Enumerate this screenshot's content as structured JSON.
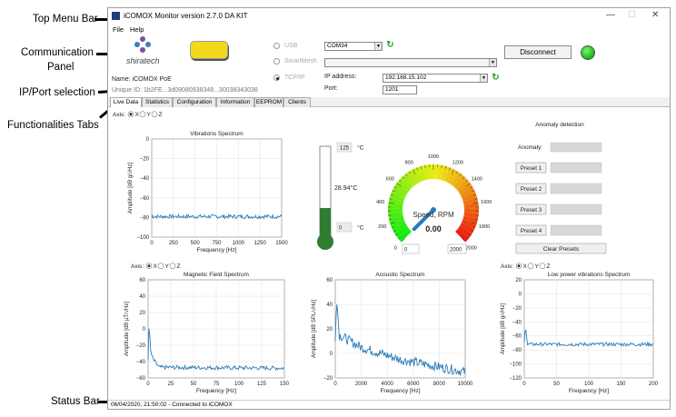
{
  "annotations": {
    "top_menu_bar": "Top Menu Bar",
    "communication_panel_1": "Communication",
    "communication_panel_2": "Panel",
    "ip_port_selection": "IP/Port selection",
    "functionalities_tabs": "Functionalities Tabs",
    "status_bar": "Status Bar"
  },
  "window": {
    "title": "iCOMOX Monitor version 2.7.0 DA KIT",
    "minimize": "—",
    "maximize": "☐",
    "close": "✕"
  },
  "menu": {
    "file": "File",
    "help": "Help"
  },
  "comm": {
    "logo_text": "shiratech",
    "name_label": "Name: iCOMOX PoE",
    "unique_id_label": "Unique ID: 1b2FE...3d09080938348...30038343038",
    "usb_label": "USB",
    "smartmesh_label": "SmartMesh",
    "tcpip_label": "TCP/IP",
    "com_value": "COM34",
    "ip_label": "IP address:",
    "ip_value": "192.168.15.102",
    "port_label": "Port:",
    "port_value": "1201",
    "disconnect_label": "Disconnect",
    "led_color": "#22c21c"
  },
  "tabs": [
    "Live Data",
    "Statistics",
    "Configuration",
    "Information",
    "EEPROM",
    "Clients"
  ],
  "axis_selector": {
    "label": "Axis:",
    "options": [
      "X",
      "Y",
      "Z"
    ]
  },
  "thermometer": {
    "max": "125",
    "unit": "°C",
    "value": "28.94°C",
    "min": "0"
  },
  "gauge": {
    "label": "Speed, RPM",
    "value": "0.00",
    "min_box": "0",
    "max_box": "2000",
    "ticks": [
      "0",
      "200",
      "400",
      "600",
      "800",
      "1000",
      "1200",
      "1400",
      "1600",
      "1800",
      "2000"
    ]
  },
  "anomaly": {
    "title": "Anomaly detection",
    "label": "Anomaly:",
    "presets": [
      "Preset 1",
      "Preset 2",
      "Preset 3",
      "Preset 4"
    ],
    "clear": "Clear Presets"
  },
  "status": {
    "text": "06/04/2020, 21:50:02 - Connected to iCOMOX"
  },
  "chart_data": [
    {
      "type": "line",
      "title": "Vibrations Spectrum",
      "xlabel": "Frequency [Hz]",
      "ylabel": "Amplitude [dB g/√Hz]",
      "xlim": [
        0,
        1500
      ],
      "ylim": [
        -100,
        0
      ],
      "xticks": [
        0,
        250,
        500,
        750,
        1000,
        1250,
        1500
      ],
      "yticks": [
        0,
        -20,
        -40,
        -60,
        -80,
        -100
      ],
      "series": [
        {
          "x": [
            0,
            5,
            10,
            1500
          ],
          "y": [
            -80,
            -72,
            -79,
            -79
          ]
        }
      ],
      "noise": 2.0
    },
    {
      "type": "line",
      "title": "Magnetic Field Spectrum",
      "xlabel": "Frequency [Hz]",
      "ylabel": "Amplitude [dB µT/√Hz]",
      "xlim": [
        0,
        150
      ],
      "ylim": [
        -60,
        60
      ],
      "xticks": [
        0,
        25,
        50,
        75,
        100,
        125,
        150
      ],
      "yticks": [
        60,
        40,
        20,
        0,
        -20,
        -40,
        -60
      ],
      "series": [
        {
          "x": [
            0,
            1,
            3,
            6,
            12,
            150
          ],
          "y": [
            -38,
            5,
            -30,
            -38,
            -47,
            -48
          ]
        }
      ],
      "noise": 2.5
    },
    {
      "type": "line",
      "title": "Acoustic Spectrum",
      "xlabel": "Frequency [Hz]",
      "ylabel": "Amplitude [dB SPL/√Hz]",
      "xlim": [
        0,
        10000
      ],
      "ylim": [
        -20,
        60
      ],
      "xticks": [
        0,
        2000,
        4000,
        6000,
        8000,
        10000
      ],
      "yticks": [
        60,
        40,
        20,
        0,
        -20
      ],
      "series": [
        {
          "x": [
            0,
            100,
            300,
            2000,
            5000,
            10000
          ],
          "y": [
            10,
            48,
            15,
            5,
            -5,
            -15
          ]
        }
      ],
      "noise": 4.0
    },
    {
      "type": "line",
      "title": "Low power vibrations Spectrum",
      "xlabel": "Frequency [Hz]",
      "ylabel": "Amplitude [dB g/√Hz]",
      "xlim": [
        0,
        200
      ],
      "ylim": [
        -120,
        20
      ],
      "xticks": [
        0,
        50,
        100,
        150,
        200
      ],
      "yticks": [
        20,
        0,
        -20,
        -40,
        -60,
        -80,
        -100,
        -120
      ],
      "series": [
        {
          "x": [
            0,
            2,
            5,
            200
          ],
          "y": [
            -70,
            -45,
            -72,
            -72
          ]
        }
      ],
      "noise": 2.5
    }
  ]
}
